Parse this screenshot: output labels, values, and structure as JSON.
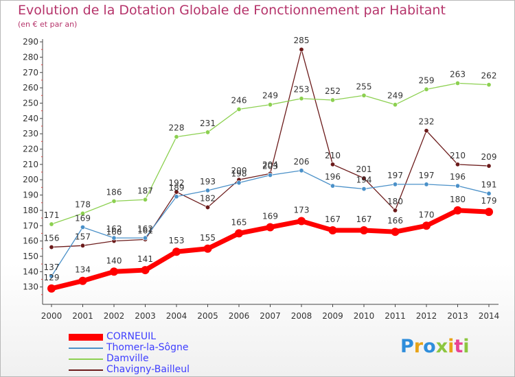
{
  "header": {
    "title": "Evolution de la Dotation Globale de Fonctionnement par Habitant",
    "subtitle": "(en € et par an)"
  },
  "logo": {
    "text": "Proxiti",
    "letter_colors": [
      "#2e8ddb",
      "#e8a317",
      "#2e8ddb",
      "#8cc63f",
      "#e8a317",
      "#e84393",
      "#8cc63f"
    ]
  },
  "chart_data": {
    "type": "line",
    "x": [
      "2000",
      "2001",
      "2002",
      "2003",
      "2004",
      "2005",
      "2006",
      "2007",
      "2008",
      "2009",
      "2010",
      "2011",
      "2012",
      "2013",
      "2014"
    ],
    "ylim": [
      120,
      290
    ],
    "yticks": [
      130,
      140,
      150,
      160,
      170,
      180,
      190,
      200,
      210,
      220,
      230,
      240,
      250,
      260,
      270,
      280,
      290
    ],
    "grid": false,
    "legend_position": "bottom-left",
    "series": [
      {
        "name": "CORNEUIL",
        "color": "#ff0000",
        "values": [
          129,
          134,
          140,
          141,
          153,
          155,
          165,
          169,
          173,
          167,
          167,
          166,
          170,
          180,
          179
        ]
      },
      {
        "name": "Thomer-la-Sôgne",
        "color": "#4a90c8",
        "values": [
          137,
          169,
          162,
          162,
          189,
          193,
          198,
          203,
          206,
          196,
          194,
          197,
          197,
          196,
          191
        ]
      },
      {
        "name": "Damville",
        "color": "#8cd050",
        "values": [
          171,
          178,
          186,
          187,
          228,
          231,
          246,
          249,
          253,
          252,
          255,
          249,
          259,
          263,
          262
        ]
      },
      {
        "name": "Chavigny-Bailleul",
        "color": "#6b1a1a",
        "values": [
          156,
          157,
          160,
          161,
          192,
          182,
          200,
          204,
          285,
          210,
          201,
          180,
          232,
          210,
          209
        ]
      }
    ]
  }
}
